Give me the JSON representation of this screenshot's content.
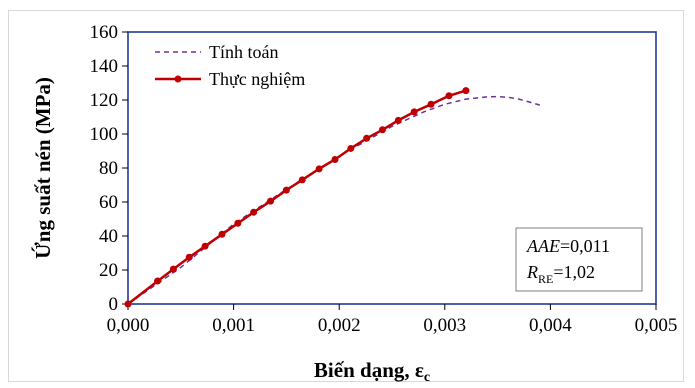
{
  "chart_data": {
    "type": "line",
    "title": "",
    "xlabel": "Biến dạng, ε",
    "xlabel_sub": "c",
    "ylabel": "Ứng suất nén (MPa)",
    "xlim": [
      0,
      0.005
    ],
    "ylim": [
      0,
      160
    ],
    "x_ticks": [
      0,
      0.001,
      0.002,
      0.003,
      0.004,
      0.005
    ],
    "x_tick_labels": [
      "0,000",
      "0,001",
      "0,002",
      "0,003",
      "0,004",
      "0,005"
    ],
    "y_ticks": [
      0,
      20,
      40,
      60,
      80,
      100,
      120,
      140,
      160
    ],
    "y_tick_labels": [
      "0",
      "20",
      "40",
      "60",
      "80",
      "100",
      "120",
      "140",
      "160"
    ],
    "grid": false,
    "legend_position": "top-left",
    "series": [
      {
        "name": "Tính toán",
        "style": "dashed",
        "color": "#7030A0",
        "x": [
          0,
          0.0005,
          0.001,
          0.0015,
          0.002,
          0.0025,
          0.0028,
          0.003,
          0.0032,
          0.0034,
          0.0035,
          0.0036,
          0.0037,
          0.0038,
          0.0039
        ],
        "y": [
          0,
          21.5,
          47,
          67.5,
          87,
          104.5,
          113,
          117.5,
          120.5,
          121.8,
          122,
          121.6,
          120.5,
          118.8,
          117
        ]
      },
      {
        "name": "Thực nghiệm",
        "style": "solid-marker",
        "color": "#C00000",
        "x": [
          0,
          0.00028,
          0.00043,
          0.00058,
          0.00073,
          0.00089,
          0.00104,
          0.00119,
          0.00135,
          0.0015,
          0.00165,
          0.00181,
          0.00196,
          0.00211,
          0.00226,
          0.00241,
          0.00256,
          0.00271,
          0.00287,
          0.00304,
          0.0032
        ],
        "y": [
          0,
          13.5,
          20.5,
          27.5,
          34,
          41,
          47.5,
          54,
          60.5,
          67,
          73,
          79.5,
          85,
          91.5,
          97.5,
          102.5,
          108,
          113,
          117.5,
          122.5,
          125.5
        ]
      }
    ],
    "annotation": {
      "line1_label": "AAE",
      "line1_value": "=0,011",
      "line2_label": "R",
      "line2_sub": "RE",
      "line2_value": "=1,02"
    }
  }
}
